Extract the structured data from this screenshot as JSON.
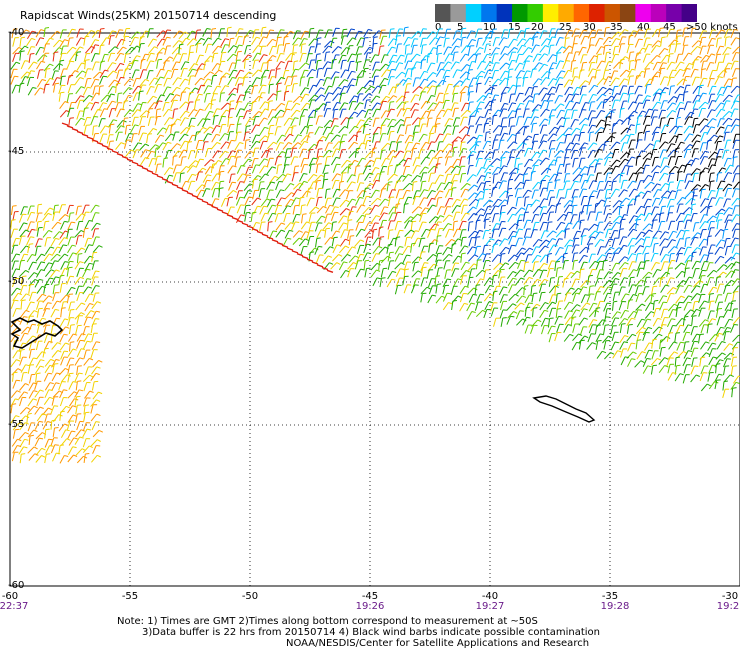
{
  "title": "Rapidscat Winds(25KM) 20150714 descending",
  "colorbar": {
    "colors": [
      "#555555",
      "#9a9a9a",
      "#00d0ff",
      "#0077ee",
      "#0033bb",
      "#009900",
      "#33cc00",
      "#ffee00",
      "#ffaa00",
      "#ff6600",
      "#dd2200",
      "#cc5500",
      "#8b4513",
      "#ee00ee",
      "#bb00bb",
      "#7700aa",
      "#440088"
    ],
    "labels": [
      "0",
      "5",
      "10",
      "15",
      "20",
      "25",
      "30",
      "35",
      "40",
      "45",
      ">50 knots"
    ]
  },
  "axes": {
    "lon_labels": [
      "-60",
      "-55",
      "-50",
      "-45",
      "-40",
      "-35",
      "-30"
    ],
    "lat_labels": [
      "-40",
      "-45",
      "-50",
      "-55",
      "-60"
    ],
    "time_labels": [
      "22:37",
      "19:26",
      "19:27",
      "19:28",
      "19:2"
    ]
  },
  "notes": {
    "line1": "Note: 1) Times are GMT 2)Times along bottom correspond to measurement at ~50S",
    "line2": "3)Data buffer is 22 hrs from 20150714 4) Black wind barbs indicate possible contamination",
    "line3": "NOAA/NESDIS/Center for Satellite Applications and Research"
  }
}
